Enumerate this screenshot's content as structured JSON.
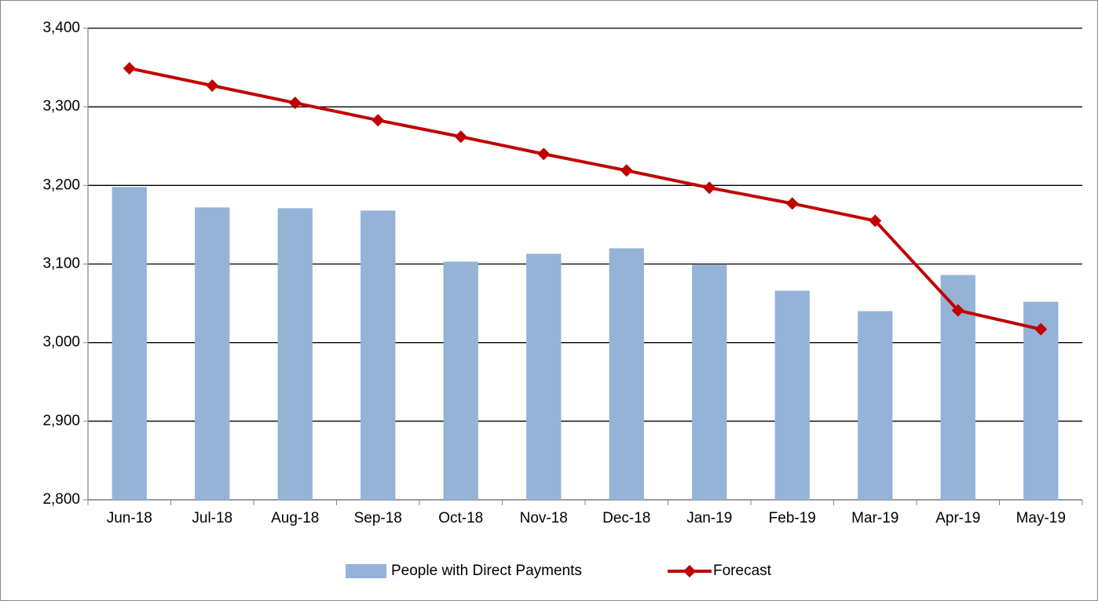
{
  "chart_data": {
    "type": "bar",
    "categories": [
      "Jun-18",
      "Jul-18",
      "Aug-18",
      "Sep-18",
      "Oct-18",
      "Nov-18",
      "Dec-18",
      "Jan-19",
      "Feb-19",
      "Mar-19",
      "Apr-19",
      "May-19"
    ],
    "series": [
      {
        "name": "People with Direct Payments",
        "type": "bar",
        "color": "#95b3d7",
        "values": [
          3198,
          3172,
          3171,
          3168,
          3103,
          3113,
          3120,
          3099,
          3066,
          3040,
          3086,
          3052
        ]
      },
      {
        "name": "Forecast",
        "type": "line",
        "color": "#c00000",
        "values": [
          3349,
          3327,
          3305,
          3283,
          3262,
          3240,
          3219,
          3197,
          3177,
          3155,
          3041,
          3017
        ]
      }
    ],
    "ylim": [
      2800,
      3400
    ],
    "yticks": [
      {
        "value": 2800,
        "label": "2,800"
      },
      {
        "value": 2900,
        "label": "2,900"
      },
      {
        "value": 3000,
        "label": "3,000"
      },
      {
        "value": 3100,
        "label": "3,100"
      },
      {
        "value": 3200,
        "label": "3,200"
      },
      {
        "value": 3300,
        "label": "3,300"
      },
      {
        "value": 3400,
        "label": "3,400"
      }
    ],
    "grid": true,
    "legend": "bottom"
  }
}
